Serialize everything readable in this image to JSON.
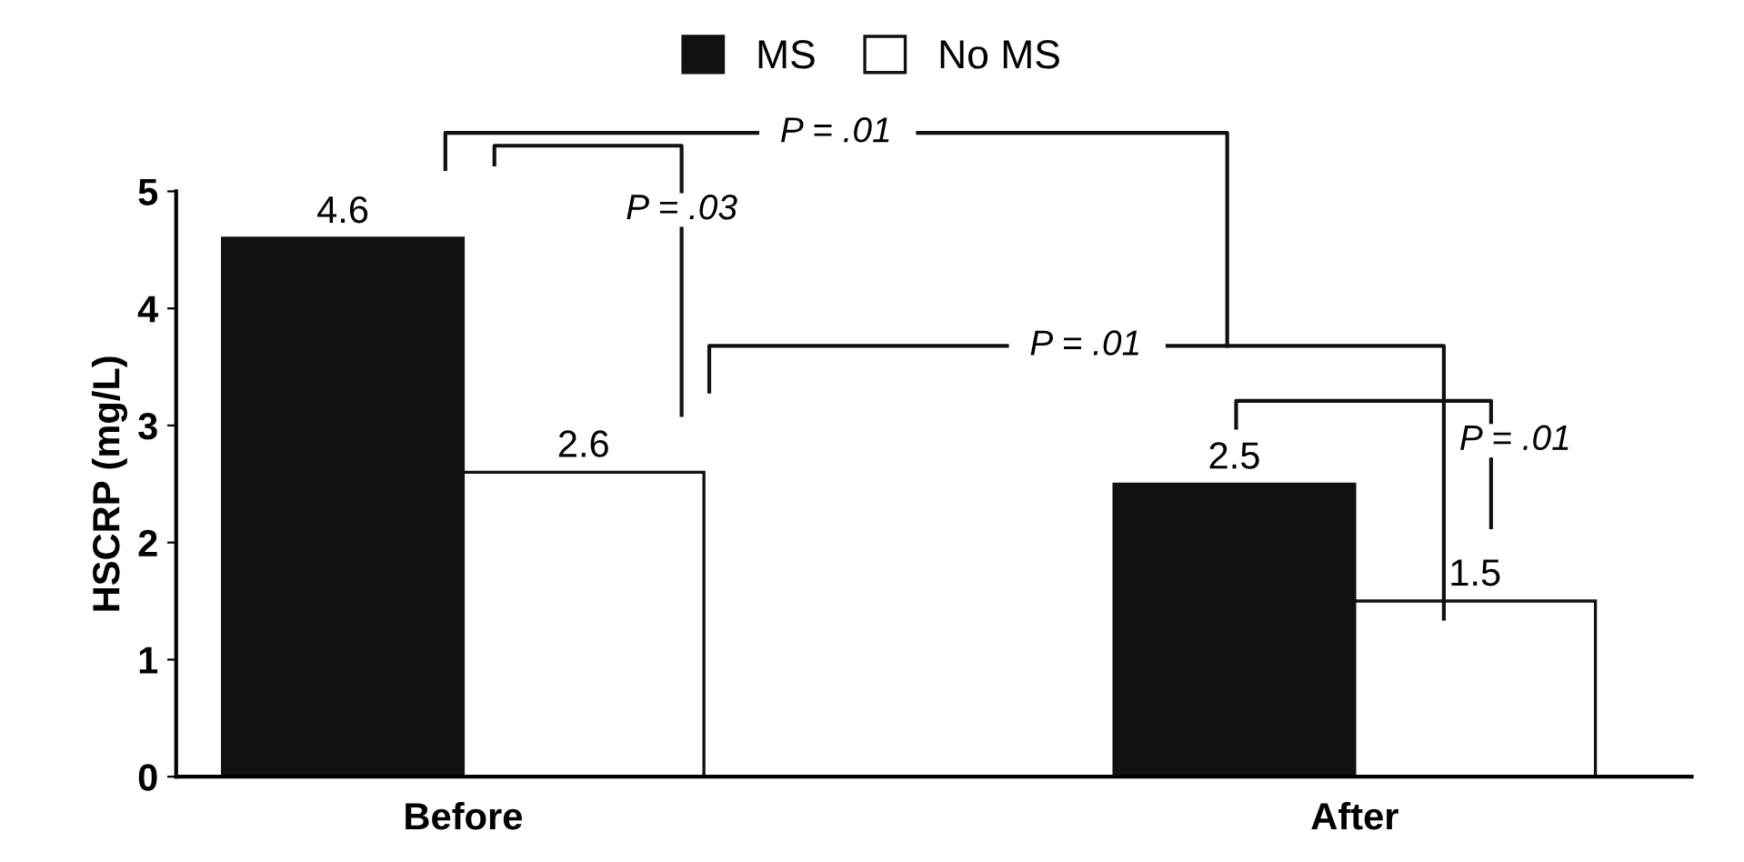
{
  "chart_data": {
    "type": "bar",
    "ylabel": "HSCRP (mg/L)",
    "categories": [
      "Before",
      "After"
    ],
    "series": [
      {
        "name": "MS",
        "color": "#111111",
        "values": [
          4.6,
          2.5
        ]
      },
      {
        "name": "No MS",
        "color": "#ffffff",
        "values": [
          2.6,
          1.5
        ]
      }
    ],
    "ylim": [
      0,
      5
    ],
    "yticks": [
      0,
      1,
      2,
      3,
      4,
      5
    ],
    "grid": false,
    "legend": "top",
    "data_labels": true,
    "annotations": [
      "P = .01",
      "P = .03",
      "P = .01",
      "P = .01"
    ]
  }
}
